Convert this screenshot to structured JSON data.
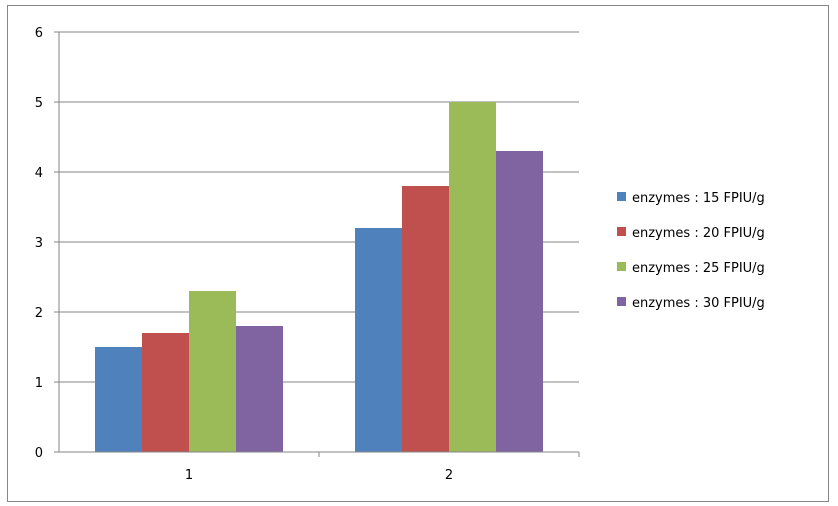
{
  "chart_data": {
    "type": "bar",
    "categories": [
      "1",
      "2"
    ],
    "series": [
      {
        "name": "enzymes : 15 FPIU/g",
        "color": "#4F81BD",
        "values": [
          1.5,
          3.2
        ]
      },
      {
        "name": "enzymes : 20 FPIU/g",
        "color": "#C0504D",
        "values": [
          1.7,
          3.8
        ]
      },
      {
        "name": "enzymes : 25 FPIU/g",
        "color": "#9BBB59",
        "values": [
          2.3,
          5.0
        ]
      },
      {
        "name": "enzymes : 30 FPIU/g",
        "color": "#8064A2",
        "values": [
          1.8,
          4.3
        ]
      }
    ],
    "ylim": [
      0,
      6
    ],
    "yticks": [
      "0",
      "1",
      "2",
      "3",
      "4",
      "5",
      "6"
    ],
    "grid": true,
    "legend_position": "right"
  }
}
